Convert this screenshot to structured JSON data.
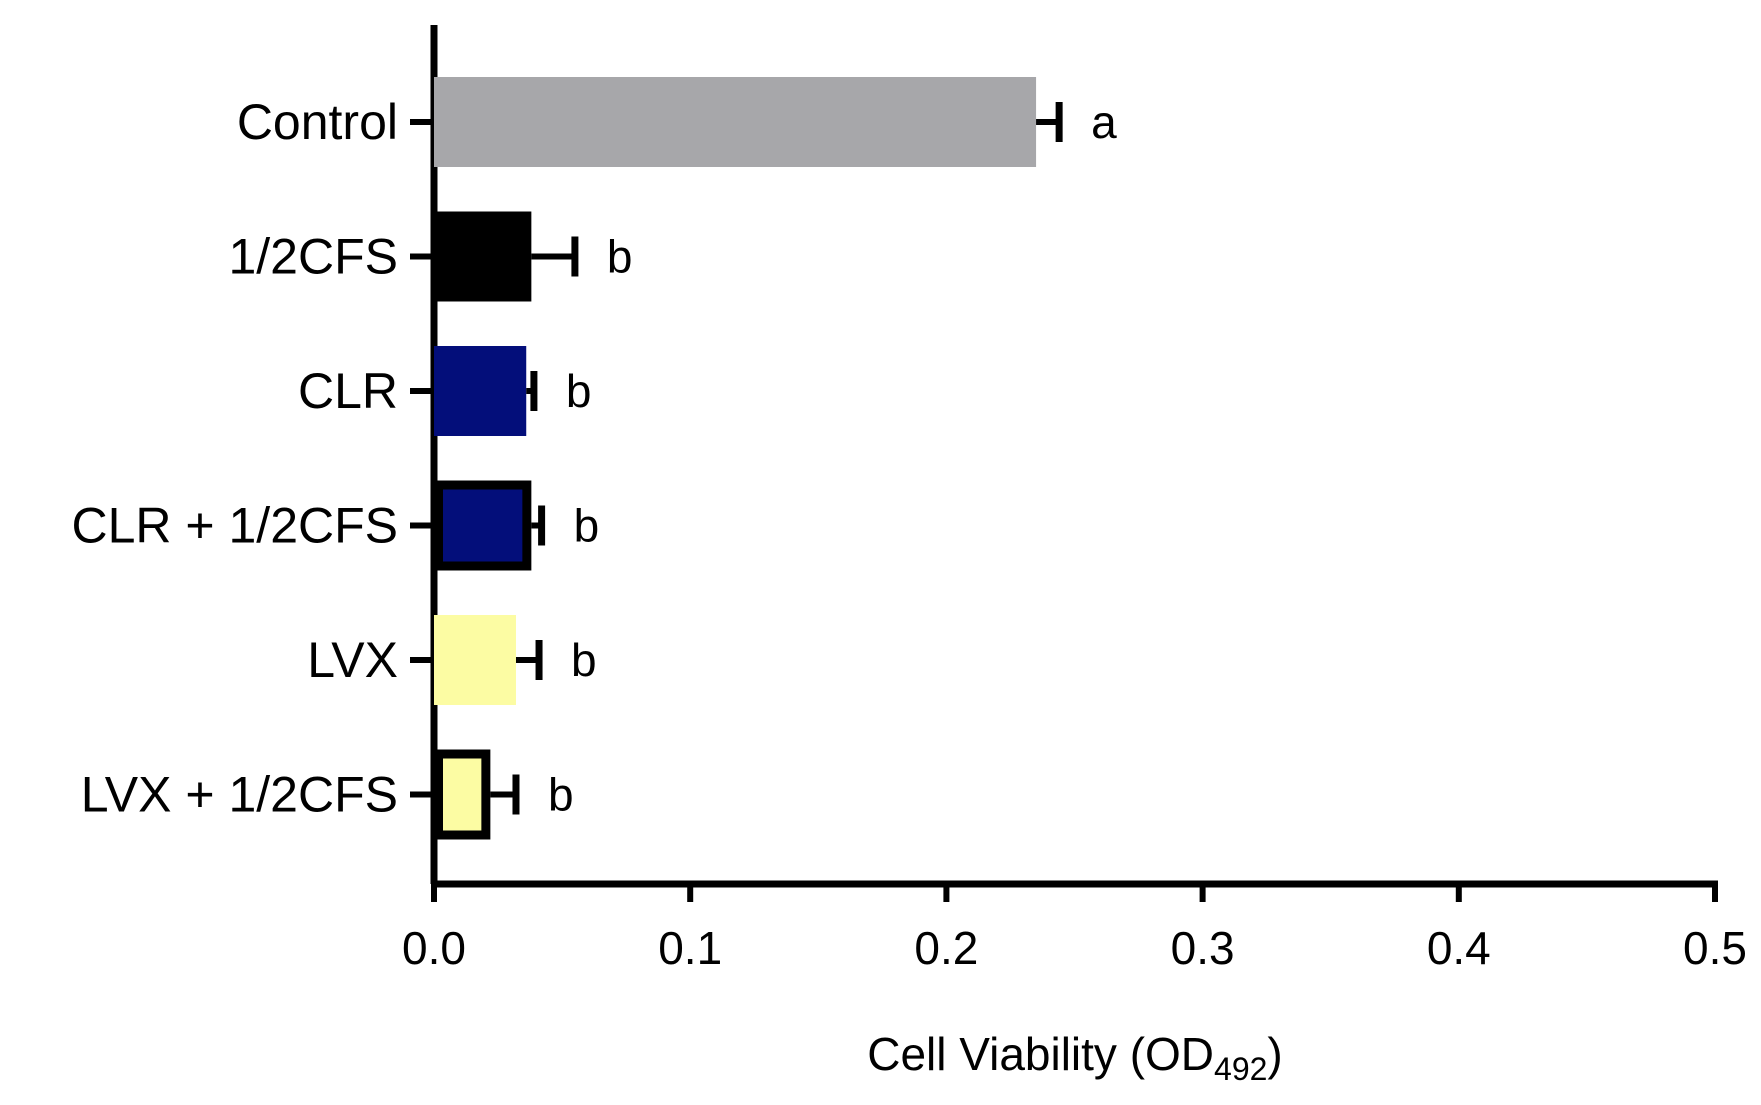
{
  "chart_data": {
    "type": "bar",
    "orientation": "horizontal",
    "title": "",
    "xlabel": "Cell Viability (OD",
    "xlabel_subscript": "492",
    "xlabel_suffix": ")",
    "ylabel": "",
    "xlim": [
      0.0,
      0.5
    ],
    "x_ticks": [
      "0.0",
      "0.1",
      "0.2",
      "0.3",
      "0.4",
      "0.5"
    ],
    "x_tick_values": [
      0.0,
      0.1,
      0.2,
      0.3,
      0.4,
      0.5
    ],
    "grid": false,
    "legend": "none",
    "categories": [
      "Control",
      "1/2CFS",
      "CLR",
      "CLR + 1/2CFS",
      "LVX",
      "LVX + 1/2CFS"
    ],
    "values": [
      0.235,
      0.038,
      0.036,
      0.038,
      0.032,
      0.022
    ],
    "errors": [
      0.009,
      0.017,
      0.003,
      0.004,
      0.009,
      0.01
    ],
    "significance": [
      "a",
      "b",
      "b",
      "b",
      "b",
      "b"
    ],
    "colors": [
      "#a7a7aa",
      "#000000",
      "#030e7a",
      "#030e7a",
      "#fcfca3",
      "#fcfca3"
    ],
    "outlined": [
      false,
      false,
      false,
      true,
      false,
      true
    ]
  }
}
